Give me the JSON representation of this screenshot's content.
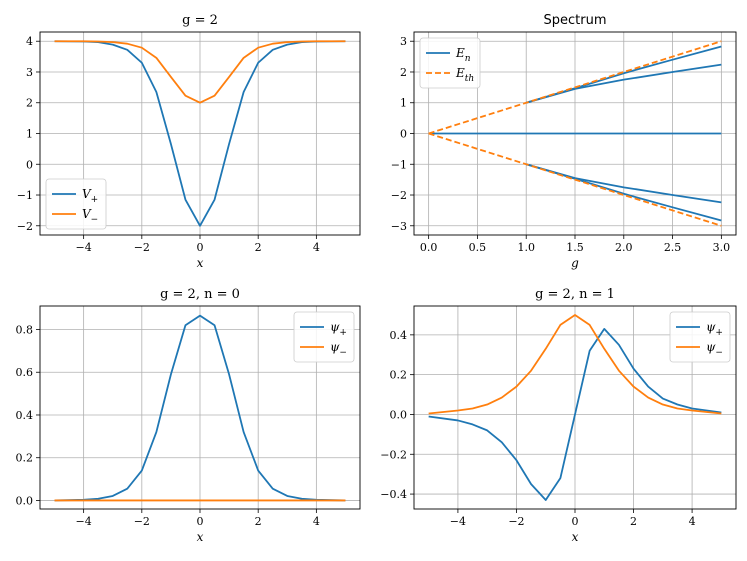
{
  "colors": {
    "blue": "#1f77b4",
    "orange": "#ff7f0e",
    "grid": "#b0b0b0"
  },
  "chart_data": [
    {
      "type": "line",
      "title": "g = 2",
      "xlabel": "x",
      "ylabel": "",
      "xlim": [
        -5.5,
        5.5
      ],
      "ylim": [
        -2.3,
        4.3
      ],
      "xticks": [
        -4,
        -2,
        0,
        2,
        4
      ],
      "yticks": [
        -2,
        -1,
        0,
        1,
        2,
        3,
        4
      ],
      "xtick_labels": [
        "−4",
        "−2",
        "0",
        "2",
        "4"
      ],
      "ytick_labels": [
        "−2",
        "−1",
        "0",
        "1",
        "2",
        "3",
        "4"
      ],
      "grid": true,
      "legend_position": "lower-left",
      "series": [
        {
          "name": "V+",
          "color": "blue",
          "style": "solid",
          "x": [
            -5,
            -4,
            -3.5,
            -3,
            -2.5,
            -2,
            -1.5,
            -1,
            -0.5,
            0,
            0.5,
            1,
            1.5,
            2,
            2.5,
            3,
            3.5,
            4,
            5
          ],
          "y": [
            4.0,
            3.99,
            3.97,
            3.89,
            3.72,
            3.3,
            2.35,
            0.66,
            -1.15,
            -2.0,
            -1.15,
            0.66,
            2.35,
            3.3,
            3.72,
            3.89,
            3.97,
            3.99,
            4.0
          ]
        },
        {
          "name": "V−",
          "color": "orange",
          "style": "solid",
          "x": [
            -5,
            -4,
            -3.5,
            -3,
            -2.5,
            -2,
            -1.5,
            -1,
            -0.5,
            0,
            0.5,
            1,
            1.5,
            2,
            2.5,
            3,
            3.5,
            4,
            5
          ],
          "y": [
            4.0,
            4.0,
            3.99,
            3.97,
            3.92,
            3.79,
            3.46,
            2.84,
            2.23,
            2.0,
            2.23,
            2.84,
            3.46,
            3.79,
            3.92,
            3.97,
            3.99,
            4.0,
            4.0
          ]
        }
      ]
    },
    {
      "type": "line",
      "title": "Spectrum",
      "xlabel": "g",
      "ylabel": "",
      "xlim": [
        -0.15,
        3.15
      ],
      "ylim": [
        -3.3,
        3.3
      ],
      "xticks": [
        0,
        0.5,
        1,
        1.5,
        2,
        2.5,
        3
      ],
      "yticks": [
        -3,
        -2,
        -1,
        0,
        1,
        2,
        3
      ],
      "xtick_labels": [
        "0.0",
        "0.5",
        "1.0",
        "1.5",
        "2.0",
        "2.5",
        "3.0"
      ],
      "ytick_labels": [
        "−3",
        "−2",
        "−1",
        "0",
        "1",
        "2",
        "3"
      ],
      "grid": true,
      "legend_position": "upper-left",
      "legend": [
        "En",
        "Eth"
      ],
      "series": [
        {
          "name": "En",
          "color": "blue",
          "style": "solid",
          "x": [
            0,
            3
          ],
          "y": [
            0,
            0
          ]
        },
        {
          "name": "",
          "color": "blue",
          "style": "solid",
          "x": [
            1,
            1.5,
            2,
            2.5,
            3
          ],
          "y": [
            1.0,
            1.45,
            1.75,
            2.0,
            2.24
          ]
        },
        {
          "name": "",
          "color": "blue",
          "style": "solid",
          "x": [
            1,
            1.5,
            2,
            2.5,
            3
          ],
          "y": [
            -1.0,
            -1.45,
            -1.75,
            -2.0,
            -2.24
          ]
        },
        {
          "name": "",
          "color": "blue",
          "style": "solid",
          "x": [
            1,
            1.5,
            2,
            2.5,
            3
          ],
          "y": [
            1.0,
            1.47,
            1.96,
            2.4,
            2.83
          ]
        },
        {
          "name": "",
          "color": "blue",
          "style": "solid",
          "x": [
            1,
            1.5,
            2,
            2.5,
            3
          ],
          "y": [
            -1.0,
            -1.47,
            -1.96,
            -2.4,
            -2.83
          ]
        },
        {
          "name": "Eth",
          "color": "orange",
          "style": "dashed",
          "x": [
            0,
            3
          ],
          "y": [
            0,
            3
          ]
        },
        {
          "name": "",
          "color": "orange",
          "style": "dashed",
          "x": [
            0,
            3
          ],
          "y": [
            0,
            -3
          ]
        }
      ]
    },
    {
      "type": "line",
      "title": "g = 2, n = 0",
      "xlabel": "x",
      "ylabel": "",
      "xlim": [
        -5.5,
        5.5
      ],
      "ylim": [
        -0.04,
        0.91
      ],
      "xticks": [
        -4,
        -2,
        0,
        2,
        4
      ],
      "yticks": [
        0,
        0.2,
        0.4,
        0.6,
        0.8
      ],
      "xtick_labels": [
        "−4",
        "−2",
        "0",
        "2",
        "4"
      ],
      "ytick_labels": [
        "0.0",
        "0.2",
        "0.4",
        "0.6",
        "0.8"
      ],
      "grid": true,
      "legend_position": "upper-right",
      "series": [
        {
          "name": "ψ+",
          "color": "blue",
          "style": "solid",
          "x": [
            -5,
            -4,
            -3.5,
            -3,
            -2.5,
            -2,
            -1.5,
            -1,
            -0.5,
            0,
            0.5,
            1,
            1.5,
            2,
            2.5,
            3,
            3.5,
            4,
            5
          ],
          "y": [
            0.0,
            0.003,
            0.008,
            0.021,
            0.055,
            0.14,
            0.32,
            0.59,
            0.82,
            0.865,
            0.82,
            0.59,
            0.32,
            0.14,
            0.055,
            0.021,
            0.008,
            0.003,
            0.0
          ]
        },
        {
          "name": "ψ−",
          "color": "orange",
          "style": "solid",
          "x": [
            -5,
            5
          ],
          "y": [
            0,
            0
          ]
        }
      ]
    },
    {
      "type": "line",
      "title": "g = 2, n = 1",
      "xlabel": "x",
      "ylabel": "",
      "xlim": [
        -5.5,
        5.5
      ],
      "ylim": [
        -0.475,
        0.545
      ],
      "xticks": [
        -4,
        -2,
        0,
        2,
        4
      ],
      "yticks": [
        -0.4,
        -0.2,
        0,
        0.2,
        0.4
      ],
      "xtick_labels": [
        "−4",
        "−2",
        "0",
        "2",
        "4"
      ],
      "ytick_labels": [
        "−0.4",
        "−0.2",
        "0.0",
        "0.2",
        "0.4"
      ],
      "grid": true,
      "legend_position": "upper-right",
      "series": [
        {
          "name": "ψ+",
          "color": "blue",
          "style": "solid",
          "x": [
            -5,
            -4,
            -3.5,
            -3,
            -2.5,
            -2,
            -1.5,
            -1,
            -0.5,
            0,
            0.5,
            1,
            1.5,
            2,
            2.5,
            3,
            3.5,
            4,
            5
          ],
          "y": [
            -0.01,
            -0.03,
            -0.05,
            -0.08,
            -0.14,
            -0.23,
            -0.35,
            -0.43,
            -0.32,
            0.0,
            0.32,
            0.43,
            0.35,
            0.23,
            0.14,
            0.08,
            0.05,
            0.03,
            0.01
          ]
        },
        {
          "name": "ψ−",
          "color": "orange",
          "style": "solid",
          "x": [
            -5,
            -4,
            -3.5,
            -3,
            -2.5,
            -2,
            -1.5,
            -1,
            -0.5,
            0,
            0.5,
            1,
            1.5,
            2,
            2.5,
            3,
            3.5,
            4,
            5
          ],
          "y": [
            0.005,
            0.02,
            0.03,
            0.05,
            0.085,
            0.14,
            0.22,
            0.33,
            0.45,
            0.5,
            0.45,
            0.33,
            0.22,
            0.14,
            0.085,
            0.05,
            0.03,
            0.02,
            0.005
          ]
        }
      ]
    }
  ]
}
